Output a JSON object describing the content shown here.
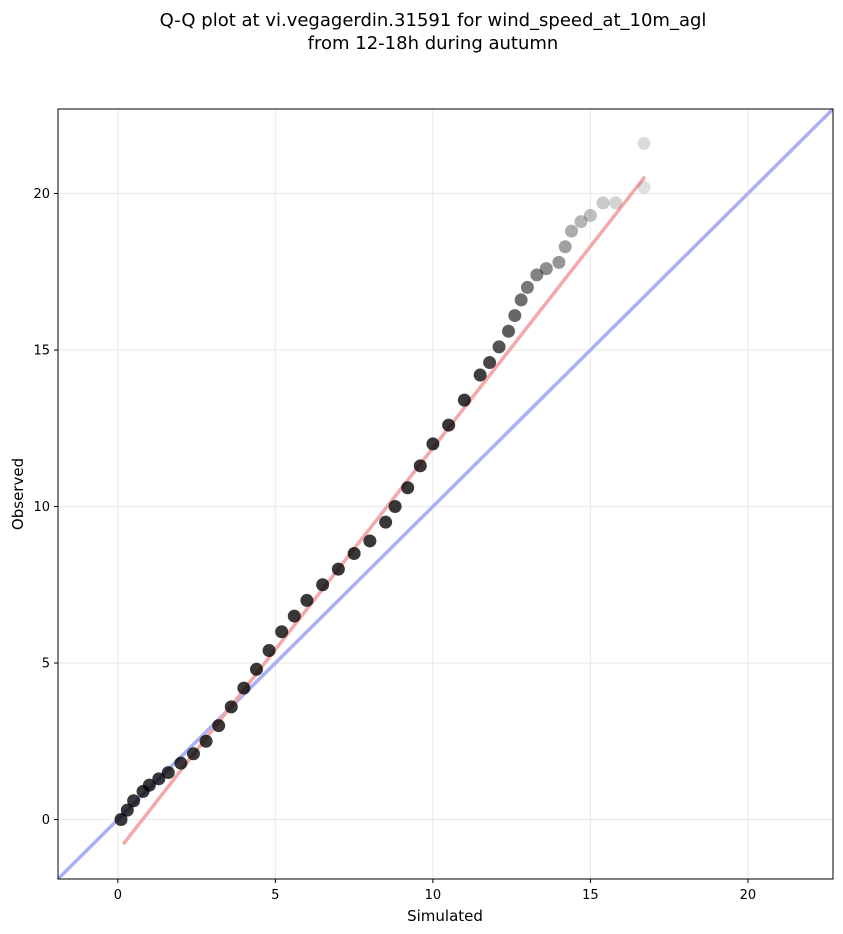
{
  "chart_data": {
    "type": "scatter",
    "title_lines": [
      "Q-Q plot at vi.vegagerdin.31591 for wind_speed_at_10m_agl",
      "from 12-18h during autumn"
    ],
    "xlabel": "Simulated",
    "ylabel": "Observed",
    "xlim": [
      -1.9,
      22.7
    ],
    "ylim": [
      -1.9,
      22.7
    ],
    "xticks": [
      0,
      5,
      10,
      15,
      20
    ],
    "yticks": [
      0,
      5,
      10,
      15,
      20
    ],
    "grid": true,
    "colors": {
      "points": "#000000",
      "identity_line": "#aab0f5",
      "fit_line": "#f5a8a8"
    },
    "identity_line": {
      "x": [
        -1.9,
        22.7
      ],
      "y": [
        -1.9,
        22.7
      ]
    },
    "fit_line": {
      "x": [
        0.2,
        16.7
      ],
      "y": [
        -0.75,
        20.5
      ]
    },
    "quantiles": {
      "x": [
        0.1,
        0.3,
        0.5,
        0.8,
        1.0,
        1.3,
        1.6,
        2.0,
        2.4,
        2.8,
        3.2,
        3.6,
        4.0,
        4.4,
        4.8,
        5.2,
        5.6,
        6.0,
        6.5,
        7.0,
        7.5,
        8.0,
        8.5,
        8.8,
        9.2,
        9.6,
        10.0,
        10.5,
        11.0,
        11.5,
        11.8,
        12.1,
        12.4,
        12.6,
        12.8,
        13.0,
        13.3,
        13.6,
        14.0,
        14.2,
        14.4,
        14.7,
        15.0,
        15.4,
        15.8,
        16.7,
        16.7
      ],
      "y": [
        0.0,
        0.3,
        0.6,
        0.9,
        1.1,
        1.3,
        1.5,
        1.8,
        2.1,
        2.5,
        3.0,
        3.6,
        4.2,
        4.8,
        5.4,
        6.0,
        6.5,
        7.0,
        7.5,
        8.0,
        8.5,
        8.9,
        9.5,
        10.0,
        10.6,
        11.3,
        12.0,
        12.6,
        13.4,
        14.2,
        14.6,
        15.1,
        15.6,
        16.1,
        16.6,
        17.0,
        17.4,
        17.6,
        17.8,
        18.3,
        18.8,
        19.1,
        19.3,
        19.7,
        19.7,
        21.6,
        20.2
      ]
    }
  }
}
